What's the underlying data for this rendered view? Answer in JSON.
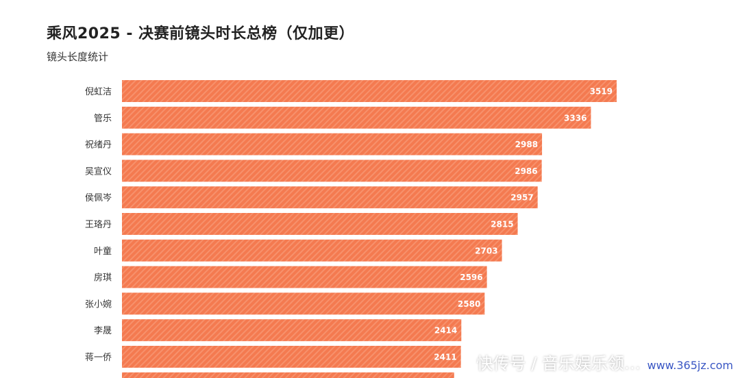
{
  "title": "乘风2025 - 决赛前镜头时长总榜（仅加更）",
  "subtitle": "镜头长度统计",
  "watermark": {
    "text": "快传号 / 音乐娱乐领…",
    "url": "www.365jz.com"
  },
  "colors": {
    "bar": "#f47a50",
    "bar_stripe": "#f7916c"
  },
  "chart_data": {
    "type": "bar",
    "orientation": "horizontal",
    "categories": [
      "倪虹洁",
      "管乐",
      "祝绪丹",
      "吴宣仪",
      "侯佩岑",
      "王珞丹",
      "叶童",
      "房琪",
      "张小婉",
      "李晟",
      "蒋一侨"
    ],
    "values": [
      3519,
      3336,
      2988,
      2986,
      2957,
      2815,
      2703,
      2596,
      2580,
      2414,
      2411
    ],
    "title": "乘风2025 - 决赛前镜头时长总榜（仅加更）",
    "subtitle": "镜头长度统计",
    "xlabel": "",
    "ylabel": "",
    "xlim": [
      0,
      3519
    ],
    "grid": false,
    "data_labels": true
  }
}
